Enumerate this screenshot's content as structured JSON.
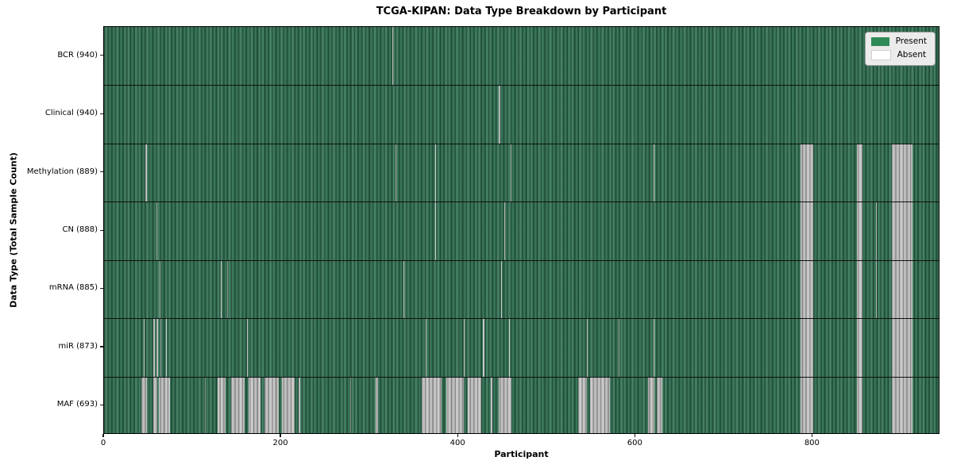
{
  "chart_data": {
    "type": "heatmap",
    "title": "TCGA-KIPAN: Data Type Breakdown by Participant",
    "xlabel": "Participant",
    "ylabel": "Data Type (Total Sample Count)",
    "x_ticks": [
      0,
      200,
      400,
      600,
      800
    ],
    "x_range": [
      0,
      944
    ],
    "n_participants": 940,
    "grid": false,
    "legend_position": "upper right",
    "legend": [
      {
        "label": "Present",
        "color": "#2e8b57"
      },
      {
        "label": "Absent",
        "color": "#ffffff"
      }
    ],
    "colors": {
      "present": "#2f7051",
      "absent": "#c6c6c6",
      "absent_thin": "#d2d2d2",
      "separator": "#111111",
      "tick": "#1a1a1a"
    },
    "rows": [
      {
        "label": "BCR (940)",
        "data_type": "BCR",
        "sample_count": 940,
        "absent_ranges": [
          [
            325,
            326
          ]
        ]
      },
      {
        "label": "Clinical (940)",
        "data_type": "Clinical",
        "sample_count": 940,
        "absent_ranges": [
          [
            446,
            447
          ]
        ]
      },
      {
        "label": "Methylation (889)",
        "data_type": "Methylation",
        "sample_count": 889,
        "absent_ranges": [
          [
            47,
            48
          ],
          [
            329,
            330
          ],
          [
            374,
            375
          ],
          [
            459,
            460
          ],
          [
            620,
            621
          ],
          [
            786,
            801
          ],
          [
            850,
            856
          ],
          [
            889,
            913
          ]
        ]
      },
      {
        "label": "CN (888)",
        "data_type": "CN",
        "sample_count": 888,
        "absent_ranges": [
          [
            59,
            60
          ],
          [
            374,
            375
          ],
          [
            452,
            453
          ],
          [
            786,
            801
          ],
          [
            850,
            856
          ],
          [
            871,
            872
          ],
          [
            889,
            913
          ]
        ]
      },
      {
        "label": "mRNA (885)",
        "data_type": "mRNA",
        "sample_count": 885,
        "absent_ranges": [
          [
            63,
            64
          ],
          [
            132,
            133
          ],
          [
            139,
            140
          ],
          [
            338,
            339
          ],
          [
            448,
            449
          ],
          [
            786,
            801
          ],
          [
            850,
            856
          ],
          [
            871,
            872
          ],
          [
            889,
            913
          ]
        ]
      },
      {
        "label": "miR (873)",
        "data_type": "miR",
        "sample_count": 873,
        "absent_ranges": [
          [
            45,
            46
          ],
          [
            56,
            57
          ],
          [
            59,
            61
          ],
          [
            64,
            65
          ],
          [
            70,
            71
          ],
          [
            161,
            162
          ],
          [
            363,
            364
          ],
          [
            406,
            407
          ],
          [
            428,
            429
          ],
          [
            457,
            458
          ],
          [
            545,
            546
          ],
          [
            581,
            582
          ],
          [
            620,
            621
          ],
          [
            786,
            801
          ],
          [
            850,
            856
          ],
          [
            889,
            913
          ]
        ]
      },
      {
        "label": "MAF (693)",
        "data_type": "MAF",
        "sample_count": 693,
        "absent_ranges": [
          [
            42,
            48
          ],
          [
            56,
            60
          ],
          [
            62,
            74
          ],
          [
            114,
            115
          ],
          [
            128,
            137
          ],
          [
            143,
            159
          ],
          [
            163,
            177
          ],
          [
            181,
            197
          ],
          [
            201,
            215
          ],
          [
            220,
            221
          ],
          [
            278,
            279
          ],
          [
            307,
            309
          ],
          [
            359,
            381
          ],
          [
            386,
            406
          ],
          [
            411,
            426
          ],
          [
            437,
            438
          ],
          [
            446,
            460
          ],
          [
            535,
            545
          ],
          [
            549,
            571
          ],
          [
            614,
            621
          ],
          [
            624,
            630
          ],
          [
            786,
            801
          ],
          [
            850,
            856
          ],
          [
            889,
            913
          ]
        ]
      }
    ]
  }
}
